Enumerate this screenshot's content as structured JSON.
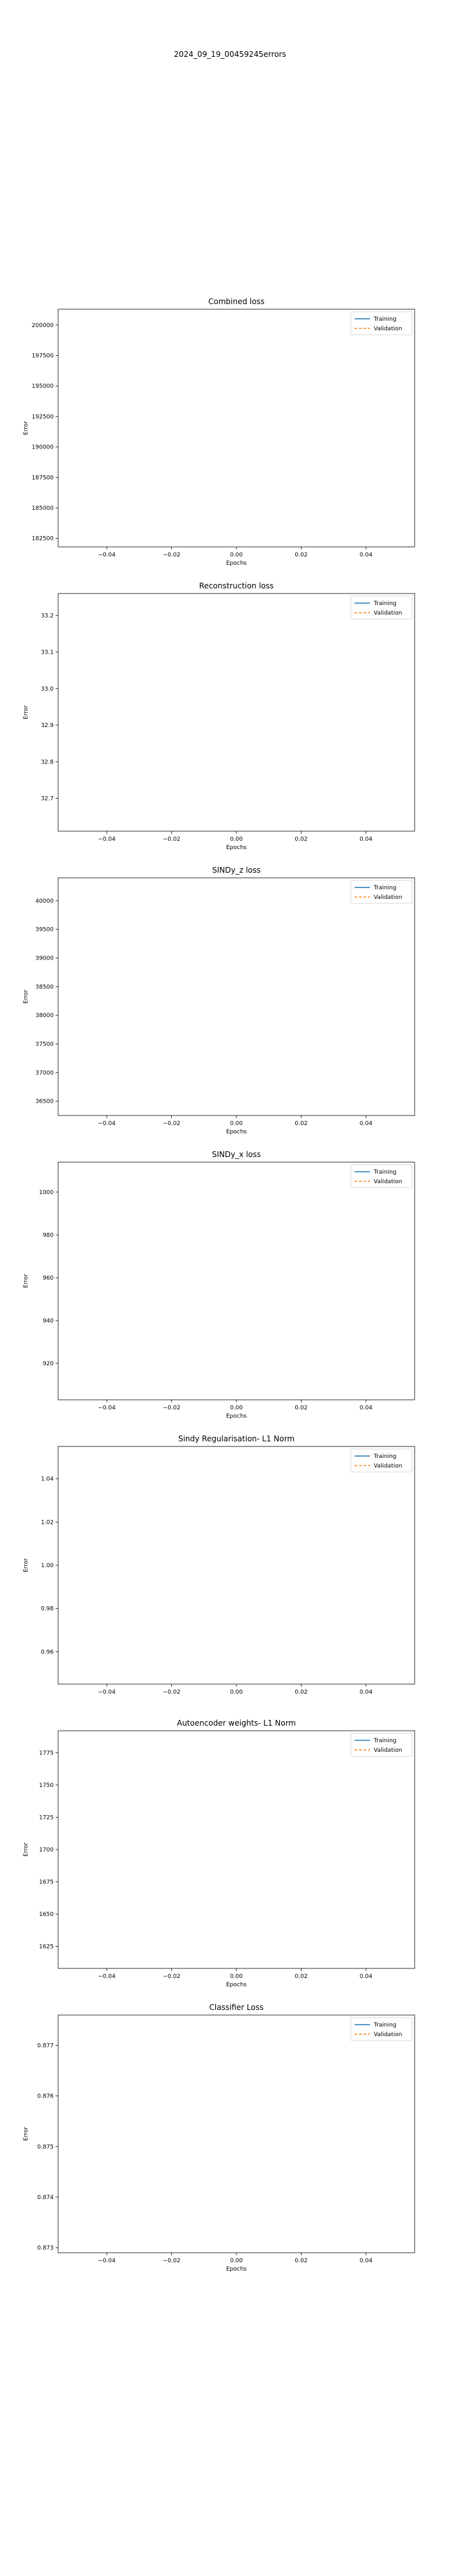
{
  "figure": {
    "suptitle": "2024_09_19_00459245errors"
  },
  "chart_data": [
    {
      "type": "line",
      "title": "Combined loss",
      "xlabel": "Epochs",
      "ylabel": "Error",
      "xlim": [
        -0.055,
        0.055
      ],
      "ylim": [
        181800,
        201300
      ],
      "xticks": [
        -0.04,
        -0.02,
        0.0,
        0.02,
        0.04
      ],
      "xtick_labels": [
        "−0.04",
        "−0.02",
        "0.00",
        "0.02",
        "0.04"
      ],
      "yticks": [
        182500,
        185000,
        187500,
        190000,
        192500,
        195000,
        197500,
        200000
      ],
      "ytick_labels": [
        "182500",
        "185000",
        "187500",
        "190000",
        "192500",
        "195000",
        "197500",
        "200000"
      ],
      "legend": {
        "position": "top-right",
        "entries": [
          "Training",
          "Validation"
        ]
      },
      "series": [
        {
          "name": "Training",
          "color": "#1f77b4",
          "style": "solid",
          "x": [],
          "y": []
        },
        {
          "name": "Validation",
          "color": "#ff7f0e",
          "style": "dashed",
          "x": [],
          "y": []
        }
      ],
      "grid": false
    },
    {
      "type": "line",
      "title": "Reconstruction loss",
      "xlabel": "Epochs",
      "ylabel": "Error",
      "xlim": [
        -0.055,
        0.055
      ],
      "ylim": [
        32.61,
        33.26
      ],
      "xticks": [
        -0.04,
        -0.02,
        0.0,
        0.02,
        0.04
      ],
      "xtick_labels": [
        "−0.04",
        "−0.02",
        "0.00",
        "0.02",
        "0.04"
      ],
      "yticks": [
        32.7,
        32.8,
        32.9,
        33.0,
        33.1,
        33.2
      ],
      "ytick_labels": [
        "32.7",
        "32.8",
        "32.9",
        "33.0",
        "33.1",
        "33.2"
      ],
      "legend": {
        "position": "top-right",
        "entries": [
          "Training",
          "Validation"
        ]
      },
      "series": [
        {
          "name": "Training",
          "color": "#1f77b4",
          "style": "solid",
          "x": [],
          "y": []
        },
        {
          "name": "Validation",
          "color": "#ff7f0e",
          "style": "dashed",
          "x": [],
          "y": []
        }
      ],
      "grid": false
    },
    {
      "type": "line",
      "title": "SINDy_z loss",
      "xlabel": "Epochs",
      "ylabel": "Error",
      "xlim": [
        -0.055,
        0.055
      ],
      "ylim": [
        36250,
        40400
      ],
      "xticks": [
        -0.04,
        -0.02,
        0.0,
        0.02,
        0.04
      ],
      "xtick_labels": [
        "−0.04",
        "−0.02",
        "0.00",
        "0.02",
        "0.04"
      ],
      "yticks": [
        36500,
        37000,
        37500,
        38000,
        38500,
        39000,
        39500,
        40000
      ],
      "ytick_labels": [
        "36500",
        "37000",
        "37500",
        "38000",
        "38500",
        "39000",
        "39500",
        "40000"
      ],
      "legend": {
        "position": "top-right",
        "entries": [
          "Training",
          "Validation"
        ]
      },
      "series": [
        {
          "name": "Training",
          "color": "#1f77b4",
          "style": "solid",
          "x": [],
          "y": []
        },
        {
          "name": "Validation",
          "color": "#ff7f0e",
          "style": "dashed",
          "x": [],
          "y": []
        }
      ],
      "grid": false
    },
    {
      "type": "line",
      "title": "SINDy_x loss",
      "xlabel": "Epochs",
      "ylabel": "Error",
      "xlim": [
        -0.055,
        0.055
      ],
      "ylim": [
        903,
        1014
      ],
      "xticks": [
        -0.04,
        -0.02,
        0.0,
        0.02,
        0.04
      ],
      "xtick_labels": [
        "−0.04",
        "−0.02",
        "0.00",
        "0.02",
        "0.04"
      ],
      "yticks": [
        920,
        940,
        960,
        980,
        1000
      ],
      "ytick_labels": [
        "920",
        "940",
        "960",
        "980",
        "1000"
      ],
      "legend": {
        "position": "top-right",
        "entries": [
          "Training",
          "Validation"
        ]
      },
      "series": [
        {
          "name": "Training",
          "color": "#1f77b4",
          "style": "solid",
          "x": [],
          "y": []
        },
        {
          "name": "Validation",
          "color": "#ff7f0e",
          "style": "dashed",
          "x": [],
          "y": []
        }
      ],
      "grid": false
    },
    {
      "type": "line",
      "title": "Sindy Regularisation- L1 Norm",
      "xlabel": "",
      "ylabel": "Error",
      "xlim": [
        -0.055,
        0.055
      ],
      "ylim": [
        0.945,
        1.055
      ],
      "xticks": [
        -0.04,
        -0.02,
        0.0,
        0.02,
        0.04
      ],
      "xtick_labels": [
        "−0.04",
        "−0.02",
        "0.00",
        "0.02",
        "0.04"
      ],
      "yticks": [
        0.96,
        0.98,
        1.0,
        1.02,
        1.04
      ],
      "ytick_labels": [
        "0.96",
        "0.98",
        "1.00",
        "1.02",
        "1.04"
      ],
      "legend": {
        "position": "top-right",
        "entries": [
          "Training",
          "Validation"
        ]
      },
      "series": [
        {
          "name": "Training",
          "color": "#1f77b4",
          "style": "solid",
          "x": [],
          "y": []
        },
        {
          "name": "Validation",
          "color": "#ff7f0e",
          "style": "dashed",
          "x": [],
          "y": []
        }
      ],
      "grid": false
    },
    {
      "type": "line",
      "title": "Autoencoder weights- L1 Norm",
      "xlabel": "Epochs",
      "ylabel": "Error",
      "xlim": [
        -0.055,
        0.055
      ],
      "ylim": [
        1608,
        1792
      ],
      "xticks": [
        -0.04,
        -0.02,
        0.0,
        0.02,
        0.04
      ],
      "xtick_labels": [
        "−0.04",
        "−0.02",
        "0.00",
        "0.02",
        "0.04"
      ],
      "yticks": [
        1625,
        1650,
        1675,
        1700,
        1725,
        1750,
        1775
      ],
      "ytick_labels": [
        "1625",
        "1650",
        "1675",
        "1700",
        "1725",
        "1750",
        "1775"
      ],
      "legend": {
        "position": "top-right",
        "entries": [
          "Training",
          "Validation"
        ]
      },
      "series": [
        {
          "name": "Training",
          "color": "#1f77b4",
          "style": "solid",
          "x": [],
          "y": []
        },
        {
          "name": "Validation",
          "color": "#ff7f0e",
          "style": "dashed",
          "x": [],
          "y": []
        }
      ],
      "grid": false
    },
    {
      "type": "line",
      "title": "Classifier Loss",
      "xlabel": "Epochs",
      "ylabel": "Error",
      "xlim": [
        -0.055,
        0.055
      ],
      "ylim": [
        0.8729,
        0.8776
      ],
      "xticks": [
        -0.04,
        -0.02,
        0.0,
        0.02,
        0.04
      ],
      "xtick_labels": [
        "−0.04",
        "−0.02",
        "0.00",
        "0.02",
        "0.04"
      ],
      "yticks": [
        0.873,
        0.874,
        0.875,
        0.876,
        0.877
      ],
      "ytick_labels": [
        "0.873",
        "0.874",
        "0.875",
        "0.876",
        "0.877"
      ],
      "legend": {
        "position": "top-right",
        "entries": [
          "Training",
          "Validation"
        ]
      },
      "series": [
        {
          "name": "Training",
          "color": "#1f77b4",
          "style": "solid",
          "x": [],
          "y": []
        },
        {
          "name": "Validation",
          "color": "#ff7f0e",
          "style": "dashed",
          "x": [],
          "y": []
        }
      ],
      "grid": false
    }
  ]
}
